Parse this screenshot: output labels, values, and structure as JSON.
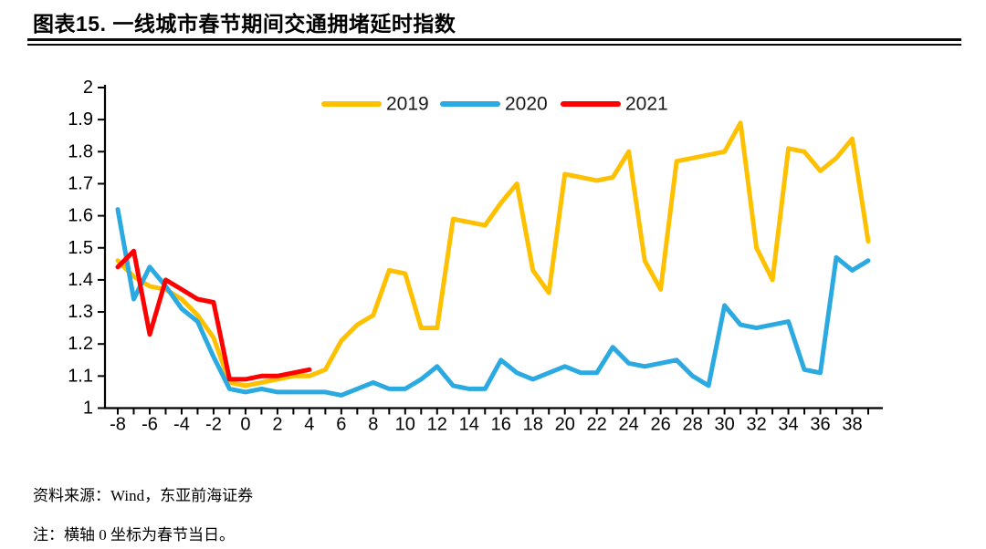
{
  "page": {
    "title": "图表15. 一线城市春节期间交通拥堵延时指数",
    "source": "资料来源：Wind，东亚前海证券",
    "note": "注：横轴 0 坐标为春节当日。"
  },
  "chart_data": {
    "type": "line",
    "title": "一线城市春节期间交通拥堵延时指数",
    "xlabel": "",
    "ylabel": "",
    "ylim": [
      1,
      2
    ],
    "xlim": [
      -8.8,
      39.8
    ],
    "grid": false,
    "legend_position": "top-center",
    "ytick_labels": [
      "2",
      "1.9",
      "1.8",
      "1.7",
      "1.6",
      "1.5",
      "1.4",
      "1.3",
      "1.2",
      "1.1",
      "1"
    ],
    "xtick_labels": [
      "-8",
      "-6",
      "-4",
      "-2",
      "0",
      "2",
      "4",
      "6",
      "8",
      "10",
      "12",
      "14",
      "16",
      "18",
      "20",
      "22",
      "24",
      "26",
      "28",
      "30",
      "32",
      "34",
      "36",
      "38"
    ],
    "x": [
      -8,
      -7,
      -6,
      -5,
      -4,
      -3,
      -2,
      -1,
      0,
      1,
      2,
      3,
      4,
      5,
      6,
      7,
      8,
      9,
      10,
      11,
      12,
      13,
      14,
      15,
      16,
      17,
      18,
      19,
      20,
      21,
      22,
      23,
      24,
      25,
      26,
      27,
      28,
      29,
      30,
      31,
      32,
      33,
      34,
      35,
      36,
      37,
      38,
      39
    ],
    "series": [
      {
        "name": "2019",
        "color": "#FFC000",
        "values": [
          1.46,
          1.41,
          1.38,
          1.37,
          1.34,
          1.29,
          1.22,
          1.08,
          1.07,
          1.08,
          1.09,
          1.1,
          1.1,
          1.12,
          1.21,
          1.26,
          1.29,
          1.43,
          1.42,
          1.25,
          1.25,
          1.59,
          1.58,
          1.57,
          1.64,
          1.7,
          1.43,
          1.36,
          1.73,
          1.72,
          1.71,
          1.72,
          1.8,
          1.46,
          1.37,
          1.77,
          1.78,
          1.79,
          1.8,
          1.89,
          1.5,
          1.4,
          1.81,
          1.8,
          1.74,
          1.78,
          1.84,
          1.52
        ]
      },
      {
        "name": "2020",
        "color": "#2BA9E1",
        "values": [
          1.62,
          1.34,
          1.44,
          1.38,
          1.31,
          1.27,
          1.16,
          1.06,
          1.05,
          1.06,
          1.05,
          1.05,
          1.05,
          1.05,
          1.04,
          1.06,
          1.08,
          1.06,
          1.06,
          1.09,
          1.13,
          1.07,
          1.06,
          1.06,
          1.15,
          1.11,
          1.09,
          1.11,
          1.13,
          1.11,
          1.11,
          1.19,
          1.14,
          1.13,
          1.14,
          1.15,
          1.1,
          1.07,
          1.32,
          1.26,
          1.25,
          1.26,
          1.27,
          1.12,
          1.11,
          1.47,
          1.43,
          1.46
        ]
      },
      {
        "name": "2021",
        "color": "#FF0000",
        "values": [
          1.44,
          1.49,
          1.23,
          1.4,
          1.37,
          1.34,
          1.33,
          1.09,
          1.09,
          1.1,
          1.1,
          1.11,
          1.12
        ]
      }
    ]
  }
}
